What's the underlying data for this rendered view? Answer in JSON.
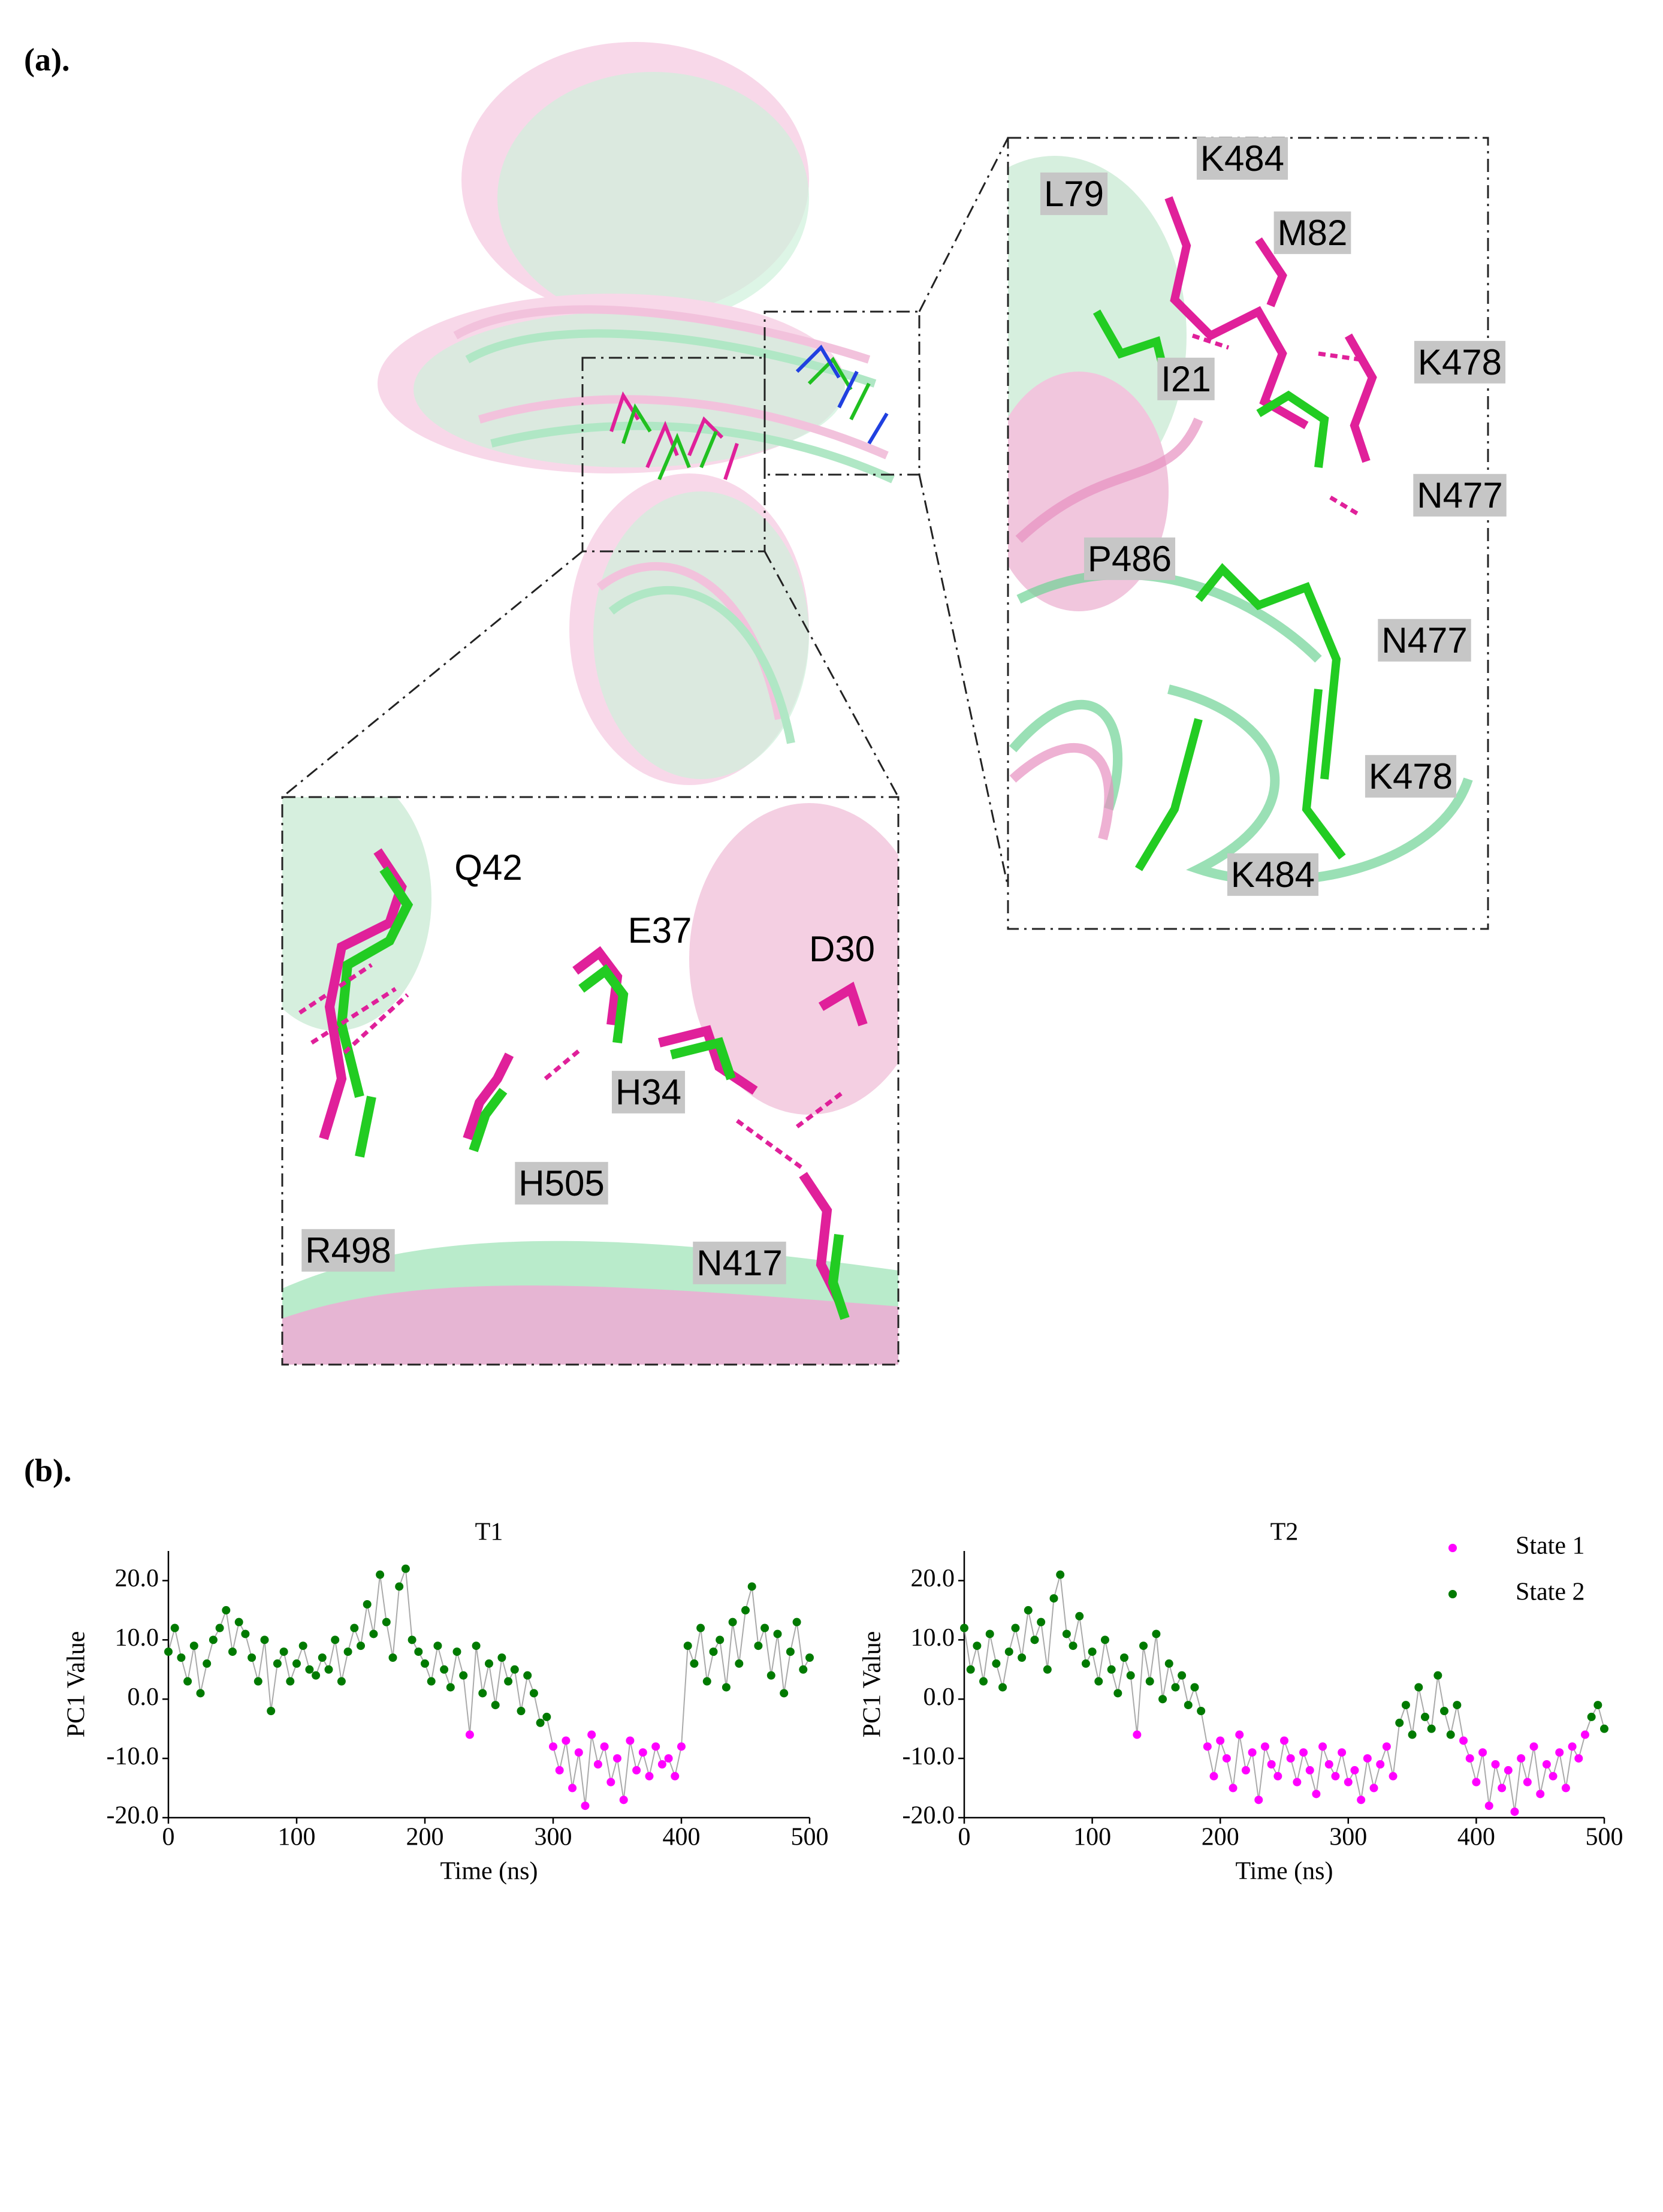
{
  "panel_a": {
    "label": "(a).",
    "zoom_right": {
      "labels": [
        "K484",
        "L79",
        "M82",
        "K478",
        "I21",
        "N477",
        "P486",
        "N477",
        "K478",
        "K484"
      ]
    },
    "zoom_bottom": {
      "labels": [
        "Q42",
        "E37",
        "D30",
        "H34",
        "H505",
        "R498",
        "N417"
      ]
    }
  },
  "panel_b": {
    "label": "(b)."
  },
  "chart_data": [
    {
      "type": "scatter",
      "title": "T1",
      "x_label": "Time (ns)",
      "y_label": "PC1 Value",
      "x": [
        0,
        5,
        10,
        15,
        20,
        25,
        30,
        35,
        40,
        45,
        50,
        55,
        60,
        65,
        70,
        75,
        80,
        85,
        90,
        95,
        100,
        105,
        110,
        115,
        120,
        125,
        130,
        135,
        140,
        145,
        150,
        155,
        160,
        165,
        170,
        175,
        180,
        185,
        190,
        195,
        200,
        205,
        210,
        215,
        220,
        225,
        230,
        235,
        240,
        245,
        250,
        255,
        260,
        265,
        270,
        275,
        280,
        285,
        290,
        295,
        300,
        305,
        310,
        315,
        320,
        325,
        330,
        335,
        340,
        345,
        350,
        355,
        360,
        365,
        370,
        375,
        380,
        385,
        390,
        395,
        400,
        405,
        410,
        415,
        420,
        425,
        430,
        435,
        440,
        445,
        450,
        455,
        460,
        465,
        470,
        475,
        480,
        485,
        490,
        495,
        500
      ],
      "series": [
        {
          "name": "State 1",
          "color": "#ff00ff",
          "values": [
            null,
            null,
            null,
            null,
            null,
            null,
            null,
            null,
            null,
            null,
            null,
            null,
            null,
            null,
            null,
            null,
            null,
            null,
            null,
            null,
            null,
            null,
            null,
            null,
            null,
            null,
            null,
            null,
            null,
            null,
            null,
            null,
            null,
            null,
            null,
            null,
            null,
            null,
            null,
            null,
            null,
            null,
            null,
            null,
            null,
            null,
            null,
            -6,
            null,
            null,
            null,
            null,
            null,
            null,
            null,
            null,
            null,
            null,
            null,
            null,
            -8,
            -12,
            -7,
            -15,
            -9,
            -18,
            -6,
            -11,
            -8,
            -14,
            -10,
            -17,
            -7,
            -12,
            -9,
            -13,
            -8,
            -11,
            -10,
            -13,
            -8,
            null,
            null,
            null,
            null,
            null,
            null,
            null,
            null,
            null,
            null,
            null,
            null,
            null,
            null,
            null,
            null,
            null,
            null,
            null,
            null
          ]
        },
        {
          "name": "State 2",
          "color": "#007a00",
          "values": [
            8,
            12,
            7,
            3,
            9,
            1,
            6,
            10,
            12,
            15,
            8,
            13,
            11,
            7,
            3,
            10,
            -2,
            6,
            8,
            3,
            6,
            9,
            5,
            4,
            7,
            5,
            10,
            3,
            8,
            12,
            9,
            16,
            11,
            21,
            13,
            7,
            19,
            22,
            10,
            8,
            6,
            3,
            9,
            5,
            2,
            8,
            4,
            null,
            9,
            1,
            6,
            -1,
            7,
            3,
            5,
            -2,
            4,
            1,
            -4,
            -3,
            null,
            null,
            null,
            null,
            null,
            null,
            null,
            null,
            null,
            null,
            null,
            null,
            null,
            null,
            null,
            null,
            null,
            null,
            null,
            null,
            null,
            9,
            6,
            12,
            3,
            8,
            10,
            2,
            13,
            6,
            15,
            19,
            9,
            12,
            4,
            11,
            1,
            8,
            13,
            5,
            7
          ]
        }
      ],
      "xlim": [
        0,
        500
      ],
      "xticks": [
        0,
        100,
        200,
        300,
        400,
        500
      ],
      "ylim": [
        -20,
        25
      ],
      "yticks": [
        {
          "value": -20,
          "label": "-20.0"
        },
        {
          "value": -10,
          "label": "-10.0"
        },
        {
          "value": 0,
          "label": "0.0"
        },
        {
          "value": 10,
          "label": "10.0"
        },
        {
          "value": 20,
          "label": "20.0"
        }
      ],
      "line_color": "#aaaaaa"
    },
    {
      "type": "scatter",
      "title": "T2",
      "x_label": "Time (ns)",
      "y_label": "PC1 Value",
      "x": [
        0,
        5,
        10,
        15,
        20,
        25,
        30,
        35,
        40,
        45,
        50,
        55,
        60,
        65,
        70,
        75,
        80,
        85,
        90,
        95,
        100,
        105,
        110,
        115,
        120,
        125,
        130,
        135,
        140,
        145,
        150,
        155,
        160,
        165,
        170,
        175,
        180,
        185,
        190,
        195,
        200,
        205,
        210,
        215,
        220,
        225,
        230,
        235,
        240,
        245,
        250,
        255,
        260,
        265,
        270,
        275,
        280,
        285,
        290,
        295,
        300,
        305,
        310,
        315,
        320,
        325,
        330,
        335,
        340,
        345,
        350,
        355,
        360,
        365,
        370,
        375,
        380,
        385,
        390,
        395,
        400,
        405,
        410,
        415,
        420,
        425,
        430,
        435,
        440,
        445,
        450,
        455,
        460,
        465,
        470,
        475,
        480,
        485,
        490,
        495,
        500
      ],
      "series": [
        {
          "name": "State 1",
          "color": "#ff00ff",
          "values": [
            null,
            null,
            null,
            null,
            null,
            null,
            null,
            null,
            null,
            null,
            null,
            null,
            null,
            null,
            null,
            null,
            null,
            null,
            null,
            null,
            null,
            null,
            null,
            null,
            null,
            null,
            null,
            -6,
            null,
            null,
            null,
            null,
            null,
            null,
            null,
            null,
            null,
            null,
            -8,
            -13,
            -7,
            -10,
            -15,
            -6,
            -12,
            -9,
            -17,
            -8,
            -11,
            -13,
            -7,
            -10,
            -14,
            -9,
            -12,
            -16,
            -8,
            -11,
            -13,
            -9,
            -14,
            -12,
            -17,
            -10,
            -15,
            -11,
            -8,
            -13,
            null,
            null,
            null,
            null,
            null,
            null,
            null,
            null,
            null,
            null,
            -7,
            -10,
            -14,
            -9,
            -18,
            -11,
            -15,
            -12,
            -19,
            -10,
            -14,
            -8,
            -16,
            -11,
            -13,
            -9,
            -15,
            -8,
            -10,
            -6,
            null,
            null,
            null
          ]
        },
        {
          "name": "State 2",
          "color": "#007a00",
          "values": [
            12,
            5,
            9,
            3,
            11,
            6,
            2,
            8,
            12,
            7,
            15,
            10,
            13,
            5,
            17,
            21,
            11,
            9,
            14,
            6,
            8,
            3,
            10,
            5,
            1,
            7,
            4,
            null,
            9,
            3,
            11,
            0,
            6,
            2,
            4,
            -1,
            2,
            -2,
            null,
            null,
            null,
            null,
            null,
            null,
            null,
            null,
            null,
            null,
            null,
            null,
            null,
            null,
            null,
            null,
            null,
            null,
            null,
            null,
            null,
            null,
            null,
            null,
            null,
            null,
            null,
            null,
            null,
            null,
            -4,
            -1,
            -6,
            2,
            -3,
            -5,
            4,
            -2,
            -6,
            -1,
            null,
            null,
            null,
            null,
            null,
            null,
            null,
            null,
            null,
            null,
            null,
            null,
            null,
            null,
            null,
            null,
            null,
            null,
            null,
            null,
            -3,
            -1,
            -5
          ]
        }
      ],
      "xlim": [
        0,
        500
      ],
      "xticks": [
        0,
        100,
        200,
        300,
        400,
        500
      ],
      "ylim": [
        -20,
        25
      ],
      "yticks": [
        {
          "value": -20,
          "label": "-20.0"
        },
        {
          "value": -10,
          "label": "-10.0"
        },
        {
          "value": 0,
          "label": "0.0"
        },
        {
          "value": 10,
          "label": "10.0"
        },
        {
          "value": 20,
          "label": "20.0"
        }
      ],
      "line_color": "#aaaaaa",
      "legend": "upper right"
    }
  ]
}
